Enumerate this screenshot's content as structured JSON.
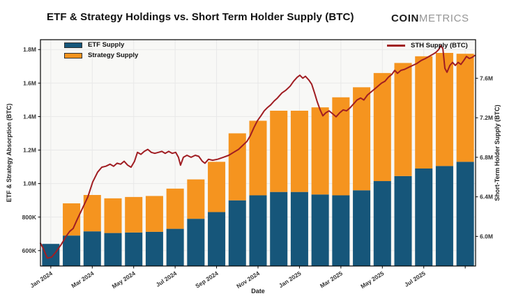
{
  "page": {
    "title": "ETF & Strategy Holdings vs. Short Term Holder Supply (BTC)",
    "logo_bold": "COIN",
    "logo_light": "METRICS"
  },
  "chart_data": {
    "type": "bar",
    "subtype": "stacked-bar-with-line-overlay",
    "title": "ETF & Strategy Holdings vs. Short Term Holder Supply (BTC)",
    "xlabel": "Date",
    "ylabel_left": "ETF & Strategy Absorption (BTC)",
    "ylabel_right": "Short-Term Holder Supply (BTC)",
    "categories": [
      "Jan 2024",
      "Feb 2024",
      "Mar 2024",
      "Apr 2024",
      "May 2024",
      "Jun 2024",
      "Jul 2024",
      "Aug 2024",
      "Sep 2024",
      "Oct 2024",
      "Nov 2024",
      "Dec 2024",
      "Jan 2025",
      "Feb 2025",
      "Mar 2025",
      "Apr 2025",
      "May 2025",
      "Jun 2025",
      "Jul 2025",
      "Aug 2025",
      "Sep 2025"
    ],
    "series": [
      {
        "name": "ETF Supply",
        "color": "#16567a",
        "values_kbtc": [
          640,
          690,
          715,
          705,
          708,
          712,
          730,
          790,
          830,
          900,
          930,
          950,
          950,
          935,
          930,
          960,
          1015,
          1045,
          1090,
          1105,
          1130
        ]
      },
      {
        "name": "Strategy Supply",
        "color": "#f5941f",
        "values_kbtc": [
          0,
          192,
          217,
          207,
          212,
          214,
          240,
          235,
          300,
          400,
          445,
          485,
          485,
          520,
          585,
          615,
          645,
          675,
          670,
          675,
          645
        ]
      }
    ],
    "line_series": {
      "name": "STH Supply (BTC)",
      "color": "#a01d22",
      "points_month_vs_mbtc": [
        [
          -0.5,
          5.93
        ],
        [
          -0.37,
          5.88
        ],
        [
          -0.17,
          5.78
        ],
        [
          0.04,
          5.79
        ],
        [
          0.24,
          5.84
        ],
        [
          0.51,
          5.92
        ],
        [
          0.74,
          6.0
        ],
        [
          0.91,
          6.05
        ],
        [
          1.08,
          6.08
        ],
        [
          1.25,
          6.16
        ],
        [
          1.52,
          6.28
        ],
        [
          1.79,
          6.4
        ],
        [
          2.02,
          6.55
        ],
        [
          2.26,
          6.65
        ],
        [
          2.46,
          6.7
        ],
        [
          2.66,
          6.71
        ],
        [
          2.86,
          6.73
        ],
        [
          3.03,
          6.71
        ],
        [
          3.2,
          6.74
        ],
        [
          3.37,
          6.73
        ],
        [
          3.54,
          6.76
        ],
        [
          3.71,
          6.72
        ],
        [
          3.87,
          6.7
        ],
        [
          4.04,
          6.76
        ],
        [
          4.18,
          6.85
        ],
        [
          4.35,
          6.83
        ],
        [
          4.51,
          6.86
        ],
        [
          4.68,
          6.88
        ],
        [
          4.85,
          6.85
        ],
        [
          5.02,
          6.84
        ],
        [
          5.19,
          6.85
        ],
        [
          5.36,
          6.86
        ],
        [
          5.52,
          6.84
        ],
        [
          5.69,
          6.86
        ],
        [
          5.86,
          6.84
        ],
        [
          6.03,
          6.85
        ],
        [
          6.16,
          6.8
        ],
        [
          6.26,
          6.72
        ],
        [
          6.4,
          6.8
        ],
        [
          6.57,
          6.82
        ],
        [
          6.77,
          6.8
        ],
        [
          6.97,
          6.82
        ],
        [
          7.14,
          6.81
        ],
        [
          7.31,
          6.76
        ],
        [
          7.44,
          6.74
        ],
        [
          7.61,
          6.78
        ],
        [
          7.81,
          6.77
        ],
        [
          8.05,
          6.78
        ],
        [
          8.32,
          6.8
        ],
        [
          8.59,
          6.82
        ],
        [
          8.82,
          6.85
        ],
        [
          9.06,
          6.88
        ],
        [
          9.26,
          6.92
        ],
        [
          9.46,
          6.96
        ],
        [
          9.63,
          7.02
        ],
        [
          9.8,
          7.1
        ],
        [
          9.97,
          7.17
        ],
        [
          10.14,
          7.22
        ],
        [
          10.3,
          7.27
        ],
        [
          10.44,
          7.3
        ],
        [
          10.61,
          7.33
        ],
        [
          10.78,
          7.37
        ],
        [
          10.94,
          7.4
        ],
        [
          11.15,
          7.45
        ],
        [
          11.35,
          7.48
        ],
        [
          11.55,
          7.52
        ],
        [
          11.72,
          7.57
        ],
        [
          11.89,
          7.61
        ],
        [
          12.02,
          7.63
        ],
        [
          12.16,
          7.6
        ],
        [
          12.29,
          7.62
        ],
        [
          12.46,
          7.58
        ],
        [
          12.59,
          7.54
        ],
        [
          12.73,
          7.45
        ],
        [
          12.86,
          7.36
        ],
        [
          13.0,
          7.28
        ],
        [
          13.13,
          7.22
        ],
        [
          13.27,
          7.25
        ],
        [
          13.43,
          7.27
        ],
        [
          13.6,
          7.24
        ],
        [
          13.77,
          7.21
        ],
        [
          13.94,
          7.25
        ],
        [
          14.11,
          7.28
        ],
        [
          14.27,
          7.27
        ],
        [
          14.44,
          7.3
        ],
        [
          14.61,
          7.34
        ],
        [
          14.78,
          7.38
        ],
        [
          14.95,
          7.4
        ],
        [
          15.11,
          7.38
        ],
        [
          15.28,
          7.43
        ],
        [
          15.45,
          7.46
        ],
        [
          15.62,
          7.49
        ],
        [
          15.79,
          7.52
        ],
        [
          15.96,
          7.55
        ],
        [
          16.13,
          7.57
        ],
        [
          16.29,
          7.61
        ],
        [
          16.46,
          7.64
        ],
        [
          16.6,
          7.68
        ],
        [
          16.73,
          7.65
        ],
        [
          16.9,
          7.68
        ],
        [
          17.07,
          7.69
        ],
        [
          17.27,
          7.71
        ],
        [
          17.47,
          7.73
        ],
        [
          17.67,
          7.75
        ],
        [
          17.88,
          7.78
        ],
        [
          18.08,
          7.8
        ],
        [
          18.25,
          7.82
        ],
        [
          18.42,
          7.84
        ],
        [
          18.58,
          7.86
        ],
        [
          18.72,
          7.89
        ],
        [
          18.82,
          7.93
        ],
        [
          18.92,
          7.9
        ],
        [
          19.02,
          7.7
        ],
        [
          19.12,
          7.66
        ],
        [
          19.26,
          7.73
        ],
        [
          19.39,
          7.76
        ],
        [
          19.52,
          7.73
        ],
        [
          19.66,
          7.76
        ],
        [
          19.79,
          7.74
        ],
        [
          19.93,
          7.78
        ],
        [
          20.06,
          7.82
        ],
        [
          20.2,
          7.8
        ],
        [
          20.33,
          7.81
        ],
        [
          20.46,
          7.83
        ]
      ]
    },
    "axes": {
      "left": {
        "range_kbtc": [
          508,
          1859
        ],
        "ticks": [
          {
            "label": "600K",
            "value": 600
          },
          {
            "label": "800K",
            "value": 800
          },
          {
            "label": "1.0M",
            "value": 1000
          },
          {
            "label": "1.2M",
            "value": 1200
          },
          {
            "label": "1.4M",
            "value": 1400
          },
          {
            "label": "1.6M",
            "value": 1600
          },
          {
            "label": "1.8M",
            "value": 1800
          }
        ]
      },
      "right": {
        "range_mbtc": [
          5.7,
          7.99
        ],
        "ticks": [
          {
            "label": "6.0M",
            "value": 6.0
          },
          {
            "label": "6.4M",
            "value": 6.4
          },
          {
            "label": "6.8M",
            "value": 6.8
          },
          {
            "label": "7.2M",
            "value": 7.2
          },
          {
            "label": "7.6M",
            "value": 7.6
          }
        ]
      },
      "x": {
        "labeled_indices": [
          0,
          2,
          4,
          6,
          8,
          10,
          12,
          14,
          16,
          18
        ],
        "unlabeled_tick_indices": [
          20
        ],
        "tick_labels": [
          "Jan 2024",
          "Mar 2024",
          "May 2024",
          "Jul 2024",
          "Sep 2024",
          "Nov 2024",
          "Jan 2025",
          "Mar 2025",
          "May 2025",
          "Jul 2025"
        ]
      }
    },
    "legend_left_entries": [
      "ETF Supply",
      "Strategy Supply"
    ],
    "legend_right_entry": "STH Supply (BTC)",
    "grid": true,
    "style": {
      "plot_bg": "#f8f8f6",
      "grid_color": "#e8e8e8",
      "frame_color": "#000000",
      "tick_text_color": "#333333",
      "axis_title_color": "#222222"
    }
  }
}
